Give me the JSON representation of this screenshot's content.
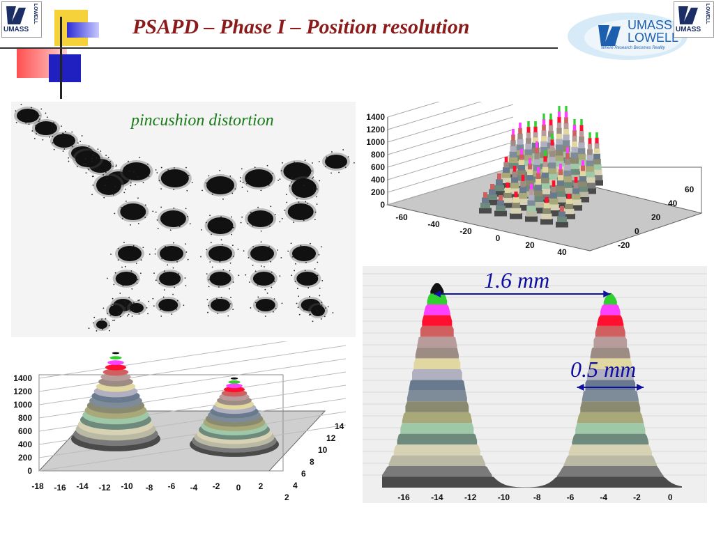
{
  "slide": {
    "title": "PSAPD – Phase I – Position resolution",
    "logo_left_text": "UMASS",
    "logo_left_side": "LOWELL",
    "logo_right_text": "UMASS",
    "logo_right_side": "LOWELL",
    "banner_logo_line1": "UMASS",
    "banner_logo_line2": "LOWELL",
    "banner_logo_tagline": "Where Research Becomes Reality"
  },
  "panels": {
    "flood_label": "pincushion distortion",
    "measure_1": "1.6 mm",
    "measure_2": "0.5 mm"
  },
  "chart_data": [
    {
      "type": "scatter",
      "title": "",
      "description_visible": "pincushion distortion",
      "xlabel": "",
      "ylabel": ""
    },
    {
      "type": "surface",
      "zticks": [
        "0",
        "200",
        "400",
        "600",
        "800",
        "1000",
        "1200",
        "1400"
      ],
      "xticks": [
        "-60",
        "-40",
        "-20",
        "0",
        "20",
        "40"
      ],
      "yticks": [
        "-20",
        "0",
        "20",
        "40",
        "60"
      ],
      "zlim": [
        0,
        1400
      ]
    },
    {
      "type": "surface",
      "zticks": [
        "0",
        "200",
        "400",
        "600",
        "800",
        "1000",
        "1200",
        "1400"
      ],
      "xticks": [
        "-18",
        "-16",
        "-14",
        "-12",
        "-10",
        "-8",
        "-6",
        "-4",
        "-2",
        "0",
        "2"
      ],
      "yticks": [
        "2",
        "4",
        "6",
        "8",
        "10",
        "12",
        "14"
      ],
      "zlim": [
        0,
        1400
      ]
    },
    {
      "type": "area",
      "xticks": [
        "-16",
        "-14",
        "-12",
        "-10",
        "-8",
        "-6",
        "-4",
        "-2",
        "0"
      ],
      "peaks_x": [
        -14,
        -3.5
      ],
      "annotations": [
        "1.6 mm",
        "0.5 mm"
      ]
    }
  ]
}
